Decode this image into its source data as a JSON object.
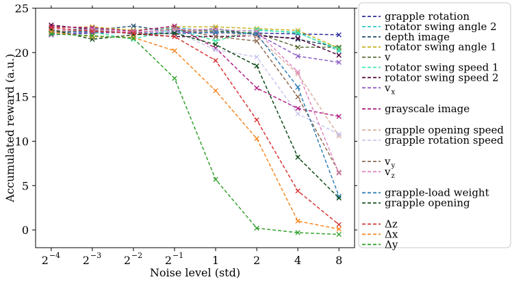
{
  "chart_data": {
    "type": "line",
    "xlabel": "Noise level (std)",
    "ylabel": "Accumulated reward (a.u.)",
    "x_ticks": [
      {
        "base": "2",
        "exp": "−4"
      },
      {
        "base": "2",
        "exp": "−3"
      },
      {
        "base": "2",
        "exp": "−2"
      },
      {
        "base": "2",
        "exp": "−1"
      },
      {
        "base": "1",
        "exp": ""
      },
      {
        "base": "2",
        "exp": ""
      },
      {
        "base": "4",
        "exp": ""
      },
      {
        "base": "8",
        "exp": ""
      }
    ],
    "x": [
      0.0625,
      0.125,
      0.25,
      0.5,
      1,
      2,
      4,
      8
    ],
    "x_scale": "log2",
    "ylim": [
      -2,
      25
    ],
    "y_ticks": [
      "0",
      "5",
      "10",
      "15",
      "20",
      "25"
    ],
    "y_tick_values": [
      0,
      5,
      10,
      15,
      20,
      25
    ],
    "grid": false,
    "legend_position": "right",
    "series": [
      {
        "name": "grapple rotation",
        "name_sub": "",
        "color": "#2a2a9c",
        "gap_before": false,
        "values": [
          22.0,
          22.2,
          22.3,
          22.5,
          22.3,
          22.2,
          22.1,
          22.0
        ]
      },
      {
        "name": "rotator swing angle 2",
        "name_sub": "",
        "color": "#2ec4c4",
        "gap_before": false,
        "values": [
          22.5,
          22.7,
          22.5,
          22.8,
          22.4,
          22.5,
          22.3,
          20.2
        ]
      },
      {
        "name": "depth image",
        "name_sub": "",
        "color": "#24506e",
        "gap_before": false,
        "values": [
          22.3,
          22.5,
          23.0,
          22.3,
          22.7,
          22.0,
          21.5,
          20.6
        ]
      },
      {
        "name": "rotator swing angle 1",
        "name_sub": "",
        "color": "#c9b21c",
        "gap_before": false,
        "values": [
          22.8,
          22.9,
          22.5,
          22.9,
          22.9,
          22.7,
          22.5,
          20.5
        ]
      },
      {
        "name": "v",
        "name_sub": "",
        "color": "#556b2f",
        "gap_before": false,
        "values": [
          22.2,
          22.6,
          22.2,
          22.6,
          22.4,
          22.2,
          20.6,
          20.6
        ]
      },
      {
        "name": "rotator swing speed 1",
        "name_sub": "",
        "color": "#3ee8a8",
        "gap_before": false,
        "values": [
          22.4,
          22.3,
          21.5,
          22.7,
          21.3,
          22.6,
          22.2,
          20.4
        ]
      },
      {
        "name": "rotator swing speed 2",
        "name_sub": "",
        "color": "#4b0033",
        "gap_before": false,
        "values": [
          23.1,
          22.6,
          22.1,
          21.8,
          21.8,
          21.9,
          21.6,
          19.7
        ]
      },
      {
        "name": "v",
        "name_sub": "x",
        "color": "#8c5cc4",
        "gap_before": false,
        "values": [
          22.0,
          22.3,
          22.3,
          22.3,
          22.2,
          22.1,
          19.6,
          18.9
        ]
      },
      {
        "name": "grayscale image",
        "name_sub": "",
        "color": "#b01e82",
        "gap_before": true,
        "values": [
          22.9,
          22.8,
          22.4,
          23.0,
          20.5,
          16.0,
          13.7,
          12.8
        ]
      },
      {
        "name": "grapple opening speed",
        "name_sub": "",
        "color": "#d9b0a0",
        "gap_before": true,
        "values": [
          22.4,
          22.6,
          22.3,
          22.6,
          22.3,
          21.8,
          17.6,
          10.6
        ]
      },
      {
        "name": "grapple rotation speed",
        "name_sub": "",
        "color": "#c6c6ee",
        "gap_before": false,
        "values": [
          22.6,
          22.4,
          22.3,
          22.4,
          20.3,
          19.5,
          13.1,
          10.8
        ]
      },
      {
        "name": "v",
        "name_sub": "y",
        "color": "#8a6a50",
        "gap_before": true,
        "values": [
          22.3,
          22.5,
          22.2,
          22.7,
          21.8,
          21.3,
          15.0,
          6.5
        ]
      },
      {
        "name": "v",
        "name_sub": "z",
        "color": "#e088c0",
        "gap_before": false,
        "values": [
          22.5,
          22.6,
          22.3,
          22.6,
          22.6,
          22.4,
          17.8,
          6.4
        ]
      },
      {
        "name": "grapple-load weight",
        "name_sub": "",
        "color": "#2f7eb4",
        "gap_before": true,
        "values": [
          22.2,
          22.4,
          22.2,
          22.1,
          22.3,
          22.1,
          16.1,
          3.8
        ]
      },
      {
        "name": "grapple opening",
        "name_sub": "",
        "color": "#0b4a14",
        "gap_before": false,
        "values": [
          22.6,
          21.5,
          22.0,
          22.2,
          20.9,
          18.5,
          8.2,
          3.6
        ]
      },
      {
        "name": "Δz",
        "name_sub": "",
        "color": "#d93333",
        "gap_before": true,
        "values": [
          22.8,
          22.4,
          22.2,
          21.8,
          19.1,
          12.4,
          4.4,
          0.6
        ]
      },
      {
        "name": "Δx",
        "name_sub": "",
        "color": "#f5861f",
        "gap_before": false,
        "values": [
          22.3,
          21.8,
          21.7,
          20.2,
          15.7,
          10.3,
          1.0,
          0.1
        ]
      },
      {
        "name": "Δy",
        "name_sub": "",
        "color": "#33a02c",
        "gap_before": false,
        "values": [
          22.1,
          21.9,
          21.6,
          17.1,
          5.7,
          0.2,
          -0.3,
          -0.5
        ]
      }
    ]
  }
}
